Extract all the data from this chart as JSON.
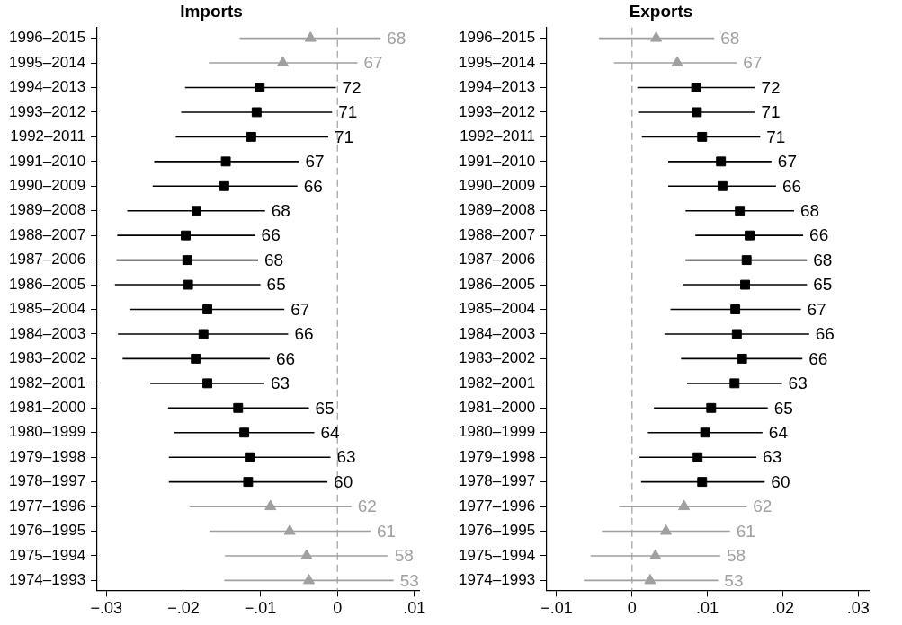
{
  "chart_data": [
    {
      "type": "scatter",
      "orientation": "horizontal",
      "title": "Imports",
      "grid": false,
      "legend": false,
      "categories": [
        "1996–2015",
        "1995–2014",
        "1994–2013",
        "1993–2012",
        "1992–2011",
        "1991–2010",
        "1990–2009",
        "1989–2008",
        "1988–2007",
        "1987–2006",
        "1986–2005",
        "1985–2004",
        "1984–2003",
        "1983–2002",
        "1982–2001",
        "1981–2000",
        "1980–1999",
        "1979–1998",
        "1978–1997",
        "1977–1996",
        "1976–1995",
        "1975–1994",
        "1974–1993"
      ],
      "xlim": [
        -0.0312,
        0.0106
      ],
      "xticks": [
        {
          "value": -0.03,
          "label": "−.03"
        },
        {
          "value": -0.02,
          "label": "−.02"
        },
        {
          "value": -0.01,
          "label": "−.01"
        },
        0,
        {
          "value": 0.01,
          "label": ".01"
        }
      ],
      "ref_lines": [
        {
          "axis": "x",
          "value": 0,
          "color": "#a0a0a0",
          "line_style": "dashed"
        }
      ],
      "series": [
        {
          "color": "#a0a0a0",
          "marker": "triangle",
          "values": [
            -0.0035,
            -0.0071,
            null,
            null,
            null,
            null,
            null,
            null,
            null,
            null,
            null,
            null,
            null,
            null,
            null,
            null,
            null,
            null,
            null,
            -0.0087,
            -0.0062,
            -0.004,
            -0.0037
          ],
          "errors": [
            [
              -0.0127,
              0.0056
            ],
            [
              -0.0167,
              0.0026
            ],
            null,
            null,
            null,
            null,
            null,
            null,
            null,
            null,
            null,
            null,
            null,
            null,
            null,
            null,
            null,
            null,
            null,
            [
              -0.0192,
              0.0018
            ],
            [
              -0.0166,
              0.0043
            ],
            [
              -0.0146,
              0.0066
            ],
            [
              -0.0147,
              0.0073
            ]
          ]
        },
        {
          "color": "#000000",
          "marker": "square",
          "values": [
            null,
            null,
            -0.0101,
            -0.0105,
            -0.0112,
            -0.0145,
            -0.0147,
            -0.0183,
            -0.0197,
            -0.0195,
            -0.0194,
            -0.0169,
            -0.0174,
            -0.0184,
            -0.0169,
            -0.0129,
            -0.0121,
            -0.0114,
            -0.0116,
            null,
            null,
            null,
            null
          ],
          "errors": [
            null,
            null,
            [
              -0.0198,
              -0.0002
            ],
            [
              -0.0203,
              -0.0007
            ],
            [
              -0.021,
              -0.0012
            ],
            [
              -0.0238,
              -0.005
            ],
            [
              -0.024,
              -0.0052
            ],
            [
              -0.0273,
              -0.0094
            ],
            [
              -0.0286,
              -0.0107
            ],
            [
              -0.0287,
              -0.0103
            ],
            [
              -0.0289,
              -0.01
            ],
            [
              -0.0269,
              -0.0069
            ],
            [
              -0.0285,
              -0.0064
            ],
            [
              -0.0279,
              -0.0088
            ],
            [
              -0.0243,
              -0.0095
            ],
            [
              -0.022,
              -0.0037
            ],
            [
              -0.0212,
              -0.003
            ],
            [
              -0.0219,
              -0.0009
            ],
            [
              -0.0219,
              -0.0013
            ],
            null,
            null,
            null,
            null
          ]
        }
      ],
      "annotations": [
        {
          "text": "68",
          "x": 0.0056,
          "y": "1996–2015"
        },
        {
          "text": "67",
          "x": 0.0026,
          "y": "1995–2014"
        },
        {
          "text": "72",
          "x": -0.0002,
          "y": "1994–2013"
        },
        {
          "text": "71",
          "x": -0.0007,
          "y": "1993–2012"
        },
        {
          "text": "71",
          "x": -0.0012,
          "y": "1992–2011"
        },
        {
          "text": "67",
          "x": -0.005,
          "y": "1991–2010"
        },
        {
          "text": "66",
          "x": -0.0052,
          "y": "1990–2009"
        },
        {
          "text": "68",
          "x": -0.0094,
          "y": "1989–2008"
        },
        {
          "text": "66",
          "x": -0.0107,
          "y": "1988–2007"
        },
        {
          "text": "68",
          "x": -0.0103,
          "y": "1987–2006"
        },
        {
          "text": "65",
          "x": -0.01,
          "y": "1986–2005"
        },
        {
          "text": "67",
          "x": -0.0069,
          "y": "1985–2004"
        },
        {
          "text": "66",
          "x": -0.0064,
          "y": "1984–2003"
        },
        {
          "text": "66",
          "x": -0.0088,
          "y": "1983–2002"
        },
        {
          "text": "63",
          "x": -0.0095,
          "y": "1982–2001"
        },
        {
          "text": "65",
          "x": -0.0037,
          "y": "1981–2000"
        },
        {
          "text": "64",
          "x": -0.003,
          "y": "1980–1999"
        },
        {
          "text": "63",
          "x": -0.0009,
          "y": "1979–1998"
        },
        {
          "text": "60",
          "x": -0.0013,
          "y": "1978–1997"
        },
        {
          "text": "62",
          "x": 0.0018,
          "y": "1977–1996"
        },
        {
          "text": "61",
          "x": 0.0043,
          "y": "1976–1995"
        },
        {
          "text": "58",
          "x": 0.0066,
          "y": "1975–1994"
        },
        {
          "text": "53",
          "x": 0.0073,
          "y": "1974–1993"
        }
      ]
    },
    {
      "type": "scatter",
      "orientation": "horizontal",
      "title": "Exports",
      "grid": false,
      "legend": false,
      "categories": [
        "1996–2015",
        "1995–2014",
        "1994–2013",
        "1993–2012",
        "1992–2011",
        "1991–2010",
        "1990–2009",
        "1989–2008",
        "1988–2007",
        "1987–2006",
        "1986–2005",
        "1985–2004",
        "1984–2003",
        "1983–2002",
        "1982–2001",
        "1981–2000",
        "1980–1999",
        "1979–1998",
        "1978–1997",
        "1977–1996",
        "1976–1995",
        "1975–1994",
        "1974–1993"
      ],
      "xlim": [
        -0.0113,
        0.0314
      ],
      "xticks": [
        {
          "value": -0.01,
          "label": "−.01"
        },
        0,
        {
          "value": 0.01,
          "label": ".01"
        },
        {
          "value": 0.02,
          "label": ".02"
        },
        {
          "value": 0.03,
          "label": ".03"
        }
      ],
      "ref_lines": [
        {
          "axis": "x",
          "value": 0,
          "color": "#a0a0a0",
          "line_style": "dashed"
        }
      ],
      "series": [
        {
          "color": "#a0a0a0",
          "marker": "triangle",
          "values": [
            0.0032,
            0.006,
            null,
            null,
            null,
            null,
            null,
            null,
            null,
            null,
            null,
            null,
            null,
            null,
            null,
            null,
            null,
            null,
            null,
            0.0069,
            0.0045,
            0.0031,
            0.0024
          ],
          "errors": [
            [
              -0.0044,
              0.0109
            ],
            [
              -0.0024,
              0.0139
            ],
            null,
            null,
            null,
            null,
            null,
            null,
            null,
            null,
            null,
            null,
            null,
            null,
            null,
            null,
            null,
            null,
            null,
            [
              -0.0017,
              0.0152
            ],
            [
              -0.004,
              0.013
            ],
            [
              -0.0055,
              0.0117
            ],
            [
              -0.0064,
              0.0114
            ]
          ]
        },
        {
          "color": "#000000",
          "marker": "square",
          "values": [
            null,
            null,
            0.0085,
            0.0086,
            0.0093,
            0.0118,
            0.012,
            0.0143,
            0.0156,
            0.0152,
            0.015,
            0.0137,
            0.0139,
            0.0146,
            0.0136,
            0.0105,
            0.0097,
            0.0087,
            0.0093,
            null,
            null,
            null,
            null
          ],
          "errors": [
            null,
            null,
            [
              0.0007,
              0.0163
            ],
            [
              0.0008,
              0.0163
            ],
            [
              0.0013,
              0.017
            ],
            [
              0.0048,
              0.0185
            ],
            [
              0.0048,
              0.0191
            ],
            [
              0.0071,
              0.0215
            ],
            [
              0.0084,
              0.0227
            ],
            [
              0.0071,
              0.0232
            ],
            [
              0.0067,
              0.0232
            ],
            [
              0.0051,
              0.0224
            ],
            [
              0.0043,
              0.0235
            ],
            [
              0.0065,
              0.0226
            ],
            [
              0.0073,
              0.0199
            ],
            [
              0.0029,
              0.018
            ],
            [
              0.0021,
              0.0173
            ],
            [
              0.001,
              0.0165
            ],
            [
              0.0012,
              0.0176
            ],
            null,
            null,
            null,
            null
          ]
        }
      ],
      "annotations": [
        {
          "text": "68",
          "x": 0.0109,
          "y": "1996–2015"
        },
        {
          "text": "67",
          "x": 0.0139,
          "y": "1995–2014"
        },
        {
          "text": "72",
          "x": 0.0163,
          "y": "1994–2013"
        },
        {
          "text": "71",
          "x": 0.0163,
          "y": "1993–2012"
        },
        {
          "text": "71",
          "x": 0.017,
          "y": "1992–2011"
        },
        {
          "text": "67",
          "x": 0.0185,
          "y": "1991–2010"
        },
        {
          "text": "66",
          "x": 0.0191,
          "y": "1990–2009"
        },
        {
          "text": "68",
          "x": 0.0215,
          "y": "1989–2008"
        },
        {
          "text": "66",
          "x": 0.0227,
          "y": "1988–2007"
        },
        {
          "text": "68",
          "x": 0.0232,
          "y": "1987–2006"
        },
        {
          "text": "65",
          "x": 0.0232,
          "y": "1986–2005"
        },
        {
          "text": "67",
          "x": 0.0224,
          "y": "1985–2004"
        },
        {
          "text": "66",
          "x": 0.0235,
          "y": "1984–2003"
        },
        {
          "text": "66",
          "x": 0.0226,
          "y": "1983–2002"
        },
        {
          "text": "63",
          "x": 0.0199,
          "y": "1982–2001"
        },
        {
          "text": "65",
          "x": 0.018,
          "y": "1981–2000"
        },
        {
          "text": "64",
          "x": 0.0173,
          "y": "1980–1999"
        },
        {
          "text": "63",
          "x": 0.0165,
          "y": "1979–1998"
        },
        {
          "text": "60",
          "x": 0.0176,
          "y": "1978–1997"
        },
        {
          "text": "62",
          "x": 0.0152,
          "y": "1977–1996"
        },
        {
          "text": "61",
          "x": 0.013,
          "y": "1976–1995"
        },
        {
          "text": "58",
          "x": 0.0117,
          "y": "1975–1994"
        },
        {
          "text": "53",
          "x": 0.0114,
          "y": "1974–1993"
        }
      ]
    }
  ]
}
